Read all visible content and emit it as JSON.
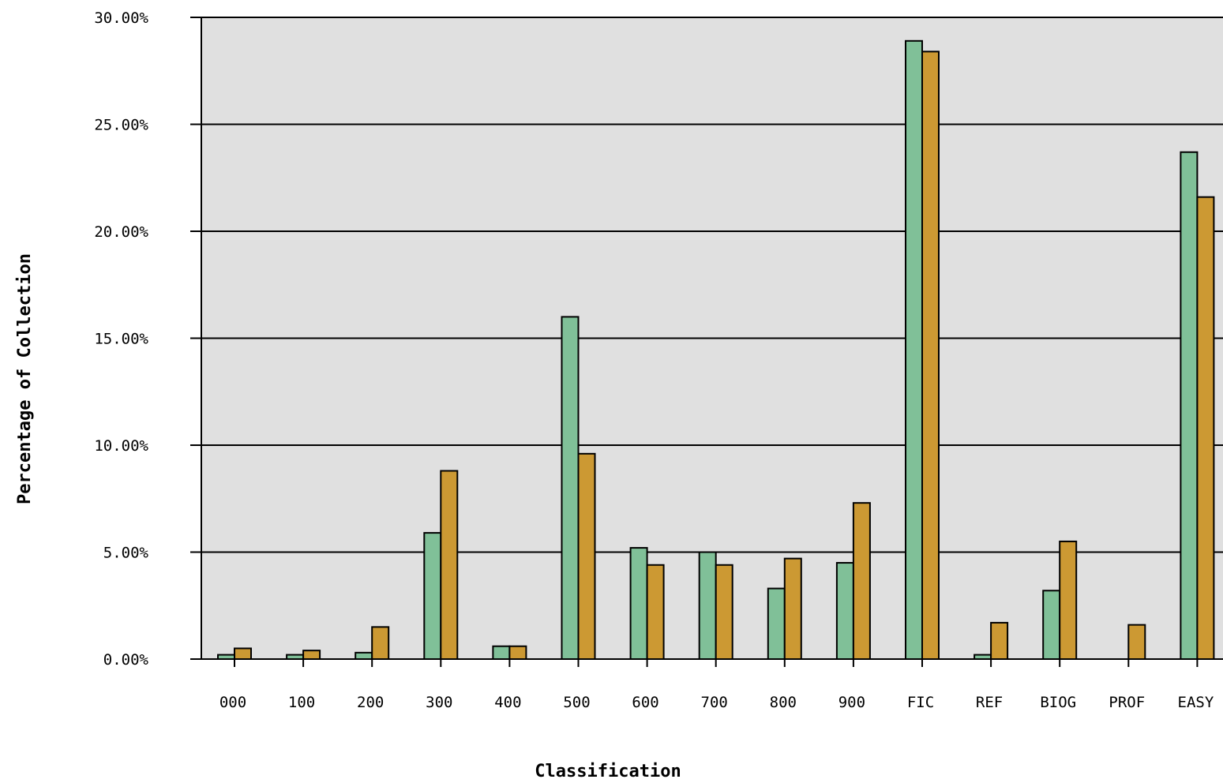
{
  "chart_data": {
    "type": "bar",
    "title": "",
    "xlabel": "Classification",
    "ylabel": "Percentage of Collection",
    "ylim": [
      0,
      30
    ],
    "yticks": [
      "0.00%",
      "5.00%",
      "10.00%",
      "15.00%",
      "20.00%",
      "25.00%",
      "30.00%"
    ],
    "ytick_values": [
      0,
      5,
      10,
      15,
      20,
      25,
      30
    ],
    "grid": true,
    "legend": "none",
    "categories": [
      "000",
      "100",
      "200",
      "300",
      "400",
      "500",
      "600",
      "700",
      "800",
      "900",
      "FIC",
      "REF",
      "BIOG",
      "PROF",
      "EASY"
    ],
    "series": [
      {
        "color": "#80c098",
        "values": [
          0.2,
          0.2,
          0.3,
          5.9,
          0.6,
          16.0,
          5.2,
          5.0,
          3.3,
          4.5,
          28.9,
          0.2,
          3.2,
          0.0,
          23.7
        ]
      },
      {
        "color": "#cc9933",
        "values": [
          0.5,
          0.4,
          1.5,
          8.8,
          0.6,
          9.6,
          4.4,
          4.4,
          4.7,
          7.3,
          28.4,
          1.7,
          5.5,
          1.6,
          21.6
        ]
      }
    ],
    "plot_background": "#e0e0e0"
  }
}
